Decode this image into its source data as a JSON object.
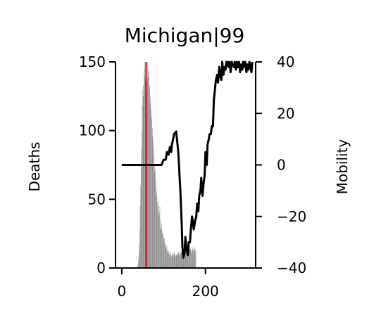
{
  "chart_data": {
    "type": "bar+line",
    "title": "Michigan|99",
    "xlabel": "",
    "ylabel": "Deaths",
    "y2label": "Mobility",
    "xlim": [
      -15,
      320
    ],
    "ylim": [
      0,
      150
    ],
    "y2lim": [
      -40,
      40
    ],
    "xticks": [
      "0",
      "200"
    ],
    "yticks": [
      "0",
      "50",
      "100",
      "150"
    ],
    "y2ticks": [
      "−40",
      "−20",
      "0",
      "20",
      "40"
    ],
    "event_day": 58,
    "colors": {
      "bars": "#808080",
      "line": "#000000",
      "event": "#e00000"
    },
    "deaths": {
      "start_day": 35,
      "values": [
        0,
        0,
        1,
        2,
        3,
        6,
        10,
        18,
        28,
        45,
        60,
        75,
        88,
        100,
        118,
        130,
        133,
        125,
        140,
        145,
        152,
        138,
        130,
        145,
        140,
        135,
        150,
        138,
        145,
        143,
        140,
        130,
        133,
        120,
        125,
        115,
        110,
        108,
        102,
        96,
        92,
        86,
        80,
        75,
        70,
        72,
        65,
        60,
        55,
        52,
        48,
        45,
        50,
        42,
        38,
        40,
        45,
        30,
        35,
        28,
        32,
        28,
        25,
        24,
        26,
        22,
        20,
        22,
        18,
        16,
        18,
        15,
        14,
        16,
        12,
        13,
        11,
        12,
        10,
        11,
        9,
        10,
        12,
        8,
        9,
        10,
        11,
        8,
        9,
        10,
        12,
        11,
        9,
        10,
        8,
        9,
        10,
        11,
        9,
        10,
        11,
        12,
        10,
        9,
        11,
        12,
        10,
        11,
        12,
        13,
        11,
        12,
        14,
        12,
        13,
        12,
        14,
        13,
        15,
        14,
        12,
        13,
        15,
        14,
        14,
        13,
        14,
        15,
        13,
        14,
        14,
        12,
        11,
        13,
        14,
        15,
        13,
        12,
        13,
        14,
        15,
        12,
        13
      ]
    },
    "mobility": {
      "x": [
        0,
        30,
        60,
        90,
        95,
        100,
        105,
        108,
        112,
        115,
        118,
        120,
        125,
        130,
        135,
        140,
        143,
        145,
        147,
        150,
        152,
        155,
        158,
        160,
        163,
        165,
        168,
        170,
        172,
        175,
        178,
        180,
        183,
        185,
        188,
        190,
        193,
        195,
        198,
        200,
        203,
        205,
        208,
        210,
        213,
        215,
        218,
        220,
        223,
        225,
        228,
        230,
        233,
        235,
        238,
        240,
        243,
        245,
        248,
        250,
        253,
        255,
        258,
        260,
        263,
        265,
        268,
        270,
        273,
        275,
        278,
        280,
        283,
        285,
        288,
        290,
        293,
        295,
        298,
        300,
        303,
        305,
        308,
        310,
        312
      ],
      "y": [
        0,
        0,
        0,
        0,
        0,
        2,
        2,
        5,
        4,
        7,
        5,
        8,
        12,
        13,
        5,
        -10,
        -22,
        -32,
        -36,
        -34,
        -28,
        -33,
        -35,
        -30,
        -30,
        -25,
        -20,
        -22,
        -25,
        -22,
        -20,
        -15,
        -18,
        -12,
        -10,
        -5,
        -12,
        -8,
        -4,
        5,
        0,
        8,
        10,
        12,
        12,
        15,
        15,
        25,
        30,
        33,
        35,
        32,
        38,
        35,
        33,
        40,
        35,
        38,
        37,
        40,
        42,
        38,
        40,
        36,
        41,
        39,
        38,
        40,
        37,
        40,
        38,
        41,
        36,
        39,
        37,
        40,
        38,
        41,
        36,
        39,
        37,
        40,
        38,
        36,
        40
      ]
    }
  }
}
